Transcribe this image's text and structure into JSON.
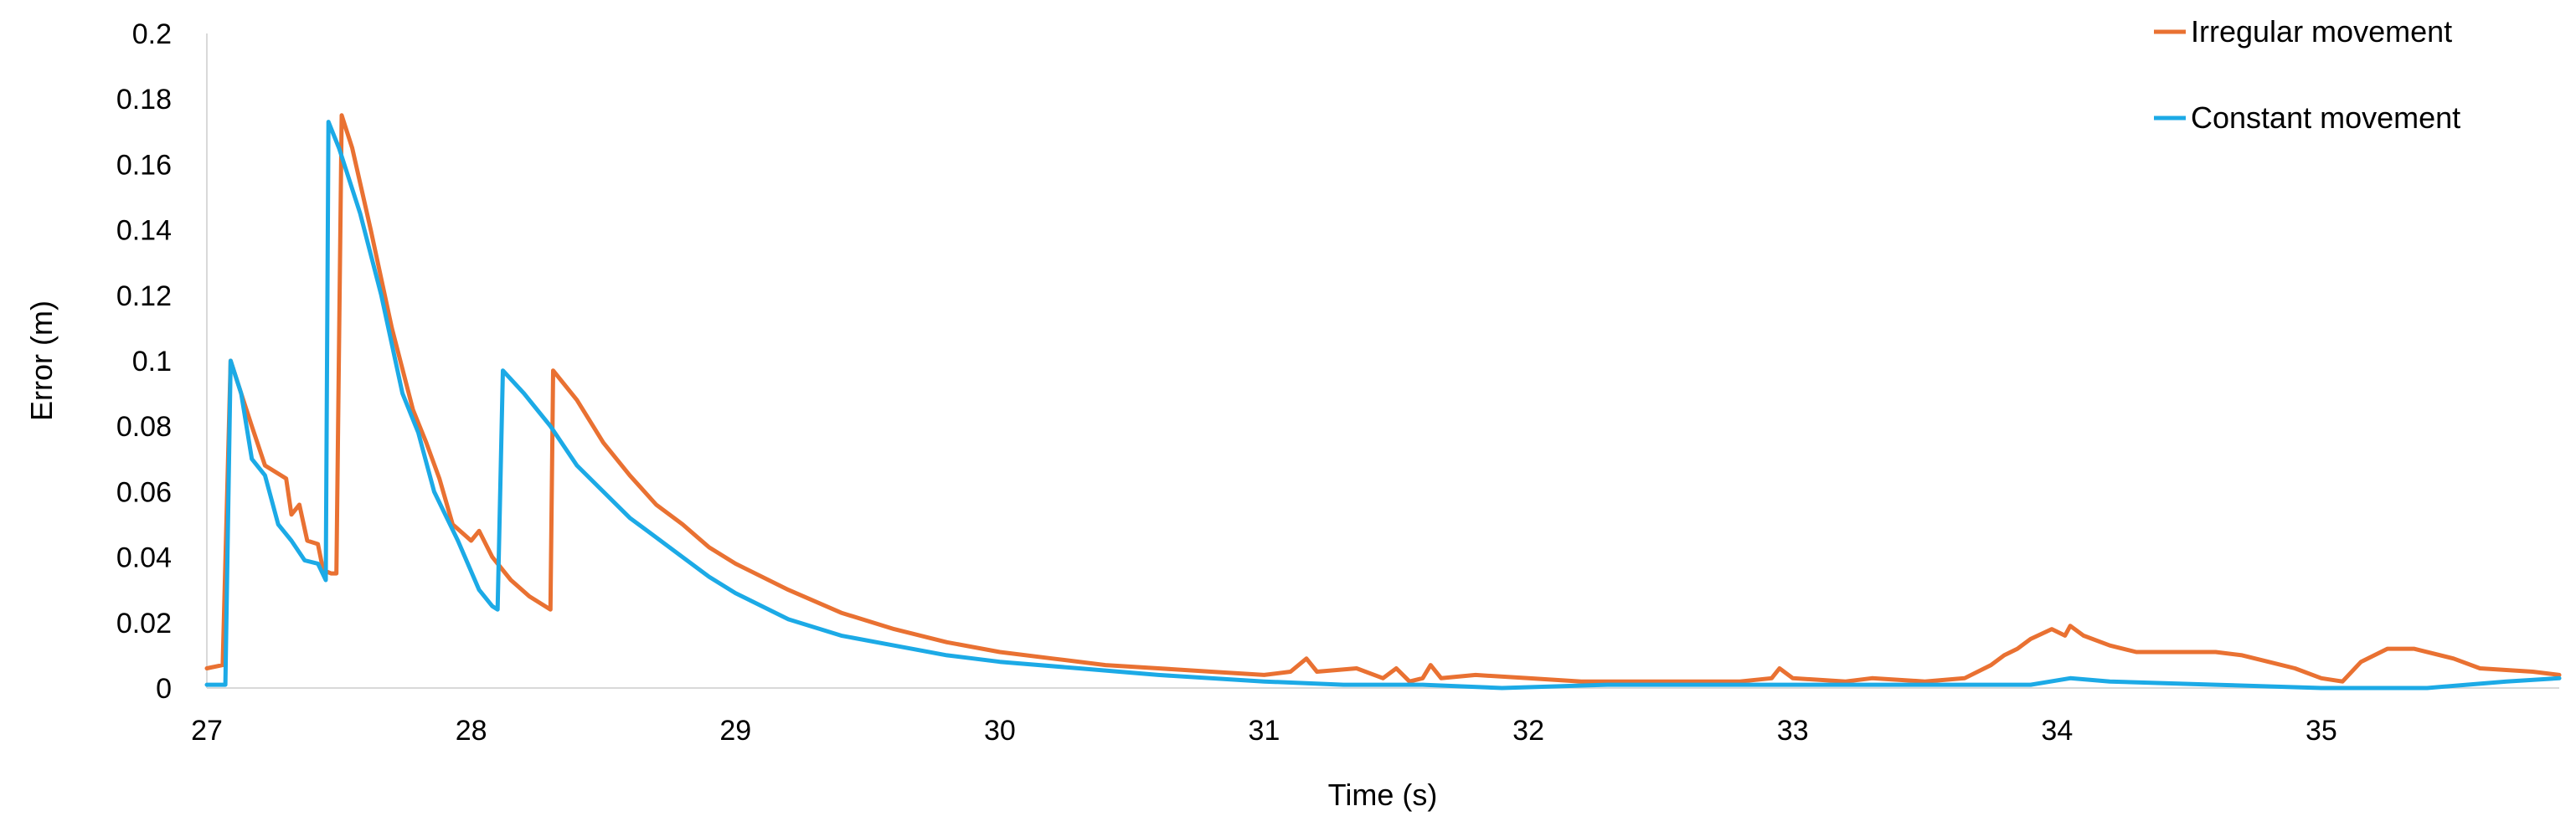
{
  "chart_data": {
    "type": "line",
    "title": "",
    "xlabel": "Time (s)",
    "ylabel": "Error (m)",
    "xlim": [
      27,
      35.9
    ],
    "ylim": [
      0,
      0.2
    ],
    "x_ticks": [
      "27",
      "28",
      "29",
      "30",
      "31",
      "32",
      "33",
      "34",
      "35"
    ],
    "y_ticks": [
      "0",
      "0.02",
      "0.04",
      "0.06",
      "0.08",
      "0.1",
      "0.12",
      "0.14",
      "0.16",
      "0.18",
      "0.2"
    ],
    "grid": false,
    "legend": "top-right",
    "series": [
      {
        "name": "Irregular movement",
        "color": "#E97132",
        "points": [
          [
            27.0,
            0.006
          ],
          [
            27.06,
            0.007
          ],
          [
            27.09,
            0.1
          ],
          [
            27.13,
            0.09
          ],
          [
            27.17,
            0.08
          ],
          [
            27.22,
            0.068
          ],
          [
            27.3,
            0.064
          ],
          [
            27.32,
            0.053
          ],
          [
            27.35,
            0.056
          ],
          [
            27.38,
            0.045
          ],
          [
            27.42,
            0.044
          ],
          [
            27.44,
            0.036
          ],
          [
            27.47,
            0.035
          ],
          [
            27.49,
            0.035
          ],
          [
            27.51,
            0.175
          ],
          [
            27.55,
            0.165
          ],
          [
            27.62,
            0.14
          ],
          [
            27.7,
            0.11
          ],
          [
            27.78,
            0.085
          ],
          [
            27.83,
            0.075
          ],
          [
            27.88,
            0.064
          ],
          [
            27.93,
            0.05
          ],
          [
            28.0,
            0.045
          ],
          [
            28.03,
            0.048
          ],
          [
            28.08,
            0.04
          ],
          [
            28.15,
            0.033
          ],
          [
            28.22,
            0.028
          ],
          [
            28.3,
            0.024
          ],
          [
            28.31,
            0.097
          ],
          [
            28.4,
            0.088
          ],
          [
            28.5,
            0.075
          ],
          [
            28.6,
            0.065
          ],
          [
            28.7,
            0.056
          ],
          [
            28.8,
            0.05
          ],
          [
            28.9,
            0.043
          ],
          [
            29.0,
            0.038
          ],
          [
            29.2,
            0.03
          ],
          [
            29.4,
            0.023
          ],
          [
            29.6,
            0.018
          ],
          [
            29.8,
            0.014
          ],
          [
            30.0,
            0.011
          ],
          [
            30.2,
            0.009
          ],
          [
            30.4,
            0.007
          ],
          [
            30.6,
            0.006
          ],
          [
            30.8,
            0.005
          ],
          [
            31.0,
            0.004
          ],
          [
            31.1,
            0.005
          ],
          [
            31.16,
            0.009
          ],
          [
            31.2,
            0.005
          ],
          [
            31.35,
            0.006
          ],
          [
            31.45,
            0.003
          ],
          [
            31.5,
            0.006
          ],
          [
            31.55,
            0.002
          ],
          [
            31.6,
            0.003
          ],
          [
            31.63,
            0.007
          ],
          [
            31.67,
            0.003
          ],
          [
            31.8,
            0.004
          ],
          [
            32.0,
            0.003
          ],
          [
            32.2,
            0.002
          ],
          [
            32.5,
            0.002
          ],
          [
            32.8,
            0.002
          ],
          [
            32.92,
            0.003
          ],
          [
            32.95,
            0.006
          ],
          [
            33.0,
            0.003
          ],
          [
            33.2,
            0.002
          ],
          [
            33.3,
            0.003
          ],
          [
            33.5,
            0.002
          ],
          [
            33.65,
            0.003
          ],
          [
            33.75,
            0.007
          ],
          [
            33.8,
            0.01
          ],
          [
            33.85,
            0.012
          ],
          [
            33.9,
            0.015
          ],
          [
            33.98,
            0.018
          ],
          [
            34.03,
            0.016
          ],
          [
            34.05,
            0.019
          ],
          [
            34.1,
            0.016
          ],
          [
            34.2,
            0.013
          ],
          [
            34.3,
            0.011
          ],
          [
            34.5,
            0.011
          ],
          [
            34.6,
            0.011
          ],
          [
            34.7,
            0.01
          ],
          [
            34.8,
            0.008
          ],
          [
            34.9,
            0.006
          ],
          [
            35.0,
            0.003
          ],
          [
            35.08,
            0.002
          ],
          [
            35.15,
            0.008
          ],
          [
            35.25,
            0.012
          ],
          [
            35.35,
            0.012
          ],
          [
            35.5,
            0.009
          ],
          [
            35.6,
            0.006
          ],
          [
            35.8,
            0.005
          ],
          [
            35.9,
            0.004
          ]
        ]
      },
      {
        "name": "Constant movement",
        "color": "#1CAAE6",
        "points": [
          [
            27.0,
            0.001
          ],
          [
            27.07,
            0.001
          ],
          [
            27.09,
            0.1
          ],
          [
            27.13,
            0.09
          ],
          [
            27.17,
            0.07
          ],
          [
            27.22,
            0.065
          ],
          [
            27.27,
            0.05
          ],
          [
            27.32,
            0.045
          ],
          [
            27.37,
            0.039
          ],
          [
            27.42,
            0.038
          ],
          [
            27.45,
            0.033
          ],
          [
            27.46,
            0.173
          ],
          [
            27.5,
            0.165
          ],
          [
            27.58,
            0.145
          ],
          [
            27.66,
            0.12
          ],
          [
            27.74,
            0.09
          ],
          [
            27.8,
            0.078
          ],
          [
            27.86,
            0.06
          ],
          [
            27.95,
            0.045
          ],
          [
            28.03,
            0.03
          ],
          [
            28.08,
            0.025
          ],
          [
            28.1,
            0.024
          ],
          [
            28.12,
            0.097
          ],
          [
            28.2,
            0.09
          ],
          [
            28.3,
            0.08
          ],
          [
            28.4,
            0.068
          ],
          [
            28.5,
            0.06
          ],
          [
            28.6,
            0.052
          ],
          [
            28.7,
            0.046
          ],
          [
            28.8,
            0.04
          ],
          [
            28.9,
            0.034
          ],
          [
            29.0,
            0.029
          ],
          [
            29.2,
            0.021
          ],
          [
            29.4,
            0.016
          ],
          [
            29.6,
            0.013
          ],
          [
            29.8,
            0.01
          ],
          [
            30.0,
            0.008
          ],
          [
            30.3,
            0.006
          ],
          [
            30.6,
            0.004
          ],
          [
            31.0,
            0.002
          ],
          [
            31.3,
            0.001
          ],
          [
            31.6,
            0.001
          ],
          [
            31.9,
            0.0
          ],
          [
            32.3,
            0.001
          ],
          [
            32.8,
            0.001
          ],
          [
            33.2,
            0.001
          ],
          [
            33.6,
            0.001
          ],
          [
            33.9,
            0.001
          ],
          [
            34.05,
            0.003
          ],
          [
            34.2,
            0.002
          ],
          [
            34.6,
            0.001
          ],
          [
            35.0,
            0.0
          ],
          [
            35.4,
            0.0
          ],
          [
            35.7,
            0.002
          ],
          [
            35.9,
            0.003
          ]
        ]
      }
    ]
  }
}
